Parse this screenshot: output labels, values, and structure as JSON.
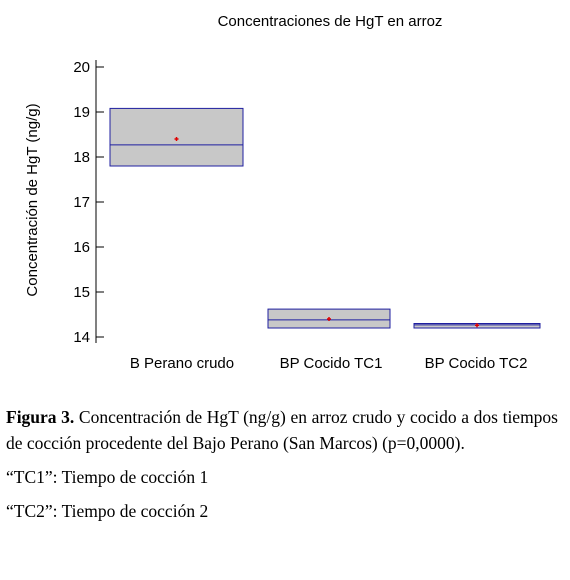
{
  "chart_data": {
    "type": "box",
    "title": "Concentraciones de HgT en arroz",
    "xlabel": "",
    "ylabel": "Concentración de HgT (ng/g)",
    "ylim": [
      14,
      20
    ],
    "yticks": [
      "14",
      "15",
      "16",
      "17",
      "18",
      "19",
      "20"
    ],
    "categories": [
      "B Perano crudo",
      "BP Cocido TC1",
      "BP Cocido TC2"
    ],
    "boxes": [
      {
        "category": "B Perano crudo",
        "q1": 17.8,
        "median": 18.27,
        "q3": 19.08,
        "mean": 18.4
      },
      {
        "category": "BP Cocido TC1",
        "q1": 14.2,
        "median": 14.38,
        "q3": 14.62,
        "mean": 14.4
      },
      {
        "category": "BP Cocido TC2",
        "q1": 14.2,
        "median": 14.27,
        "q3": 14.3,
        "mean": 14.26
      }
    ],
    "colors": {
      "box_fill": "#c8c8c8",
      "box_stroke": "#1f1fa0",
      "mean_marker": "#e00000"
    }
  },
  "caption": {
    "label": "Figura 3.",
    "text": " Concentración de HgT (ng/g) en arroz crudo y cocido a dos tiempos de cocción procedente del Bajo Perano (San Marcos) (p=0,0000).",
    "note1": "“TC1”: Tiempo de cocción 1",
    "note2": "“TC2”: Tiempo de cocción 2"
  }
}
